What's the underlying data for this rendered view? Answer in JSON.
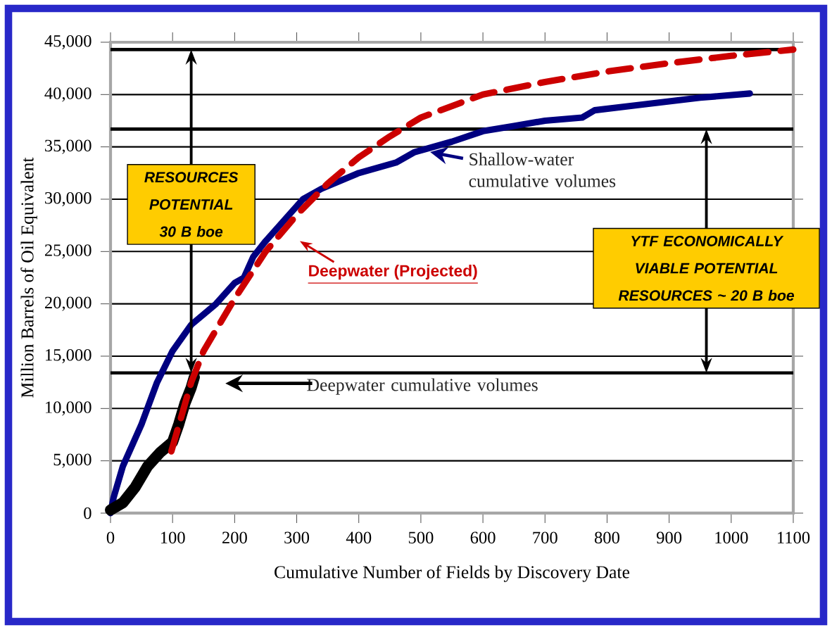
{
  "chart_data": {
    "type": "line",
    "xlabel": "Cumulative Number of Fields by Discovery Date",
    "ylabel": "Million Barrels of Oil Equivalent",
    "xlim": [
      0,
      1100
    ],
    "xticks": [
      0,
      100,
      200,
      300,
      400,
      500,
      600,
      700,
      800,
      900,
      1000,
      1100
    ],
    "ylim": [
      0,
      45000
    ],
    "yticks": [
      0,
      {
        "value": 5000,
        "label": "5,000"
      },
      {
        "value": 10000,
        "label": "10,000"
      },
      {
        "value": 15000,
        "label": "15,000"
      },
      {
        "value": 20000,
        "label": "20,000"
      },
      {
        "value": 25000,
        "label": "25,000"
      },
      {
        "value": 30000,
        "label": "30,000"
      },
      {
        "value": 35000,
        "label": "35,000"
      },
      {
        "value": 40000,
        "label": "40,000"
      },
      {
        "value": 45000,
        "label": "45,000"
      }
    ],
    "grid": "y",
    "marker": "none",
    "legend": "center",
    "series": [
      {
        "name": "Shallow-water cumulative volumes",
        "color": "#000080",
        "line_style": "solid",
        "x": [
          0,
          5,
          20,
          50,
          75,
          100,
          130,
          170,
          200,
          215,
          230,
          250,
          280,
          310,
          340,
          400,
          460,
          490,
          550,
          600,
          650,
          700,
          760,
          780,
          850,
          950,
          1030
        ],
        "values": [
          0,
          1500,
          4500,
          8500,
          12500,
          15500,
          18000,
          20000,
          22000,
          22500,
          24500,
          26000,
          28000,
          30000,
          31000,
          32500,
          33500,
          34500,
          35500,
          36500,
          37000,
          37500,
          37800,
          38500,
          39000,
          39700,
          40100
        ]
      },
      {
        "name": "Deepwater cumulative volumes",
        "color": "#000000",
        "line_style": "solid",
        "x": [
          0,
          20,
          40,
          60,
          80,
          100,
          110,
          120,
          130,
          135
        ],
        "values": [
          300,
          1000,
          2500,
          4500,
          5800,
          6800,
          8500,
          10500,
          12000,
          13000
        ]
      },
      {
        "name": "Deepwater (Projected)",
        "color": "#cc0000",
        "line_style": "dashed",
        "x": [
          98,
          130,
          150,
          200,
          250,
          300,
          350,
          400,
          450,
          500,
          600,
          700,
          800,
          900,
          1000,
          1100
        ],
        "values": [
          5900,
          12500,
          15500,
          20500,
          25000,
          28500,
          31500,
          34000,
          36000,
          37800,
          40000,
          41200,
          42200,
          43000,
          43700,
          44300
        ]
      }
    ],
    "ref_lines": [
      {
        "axis": "y",
        "value": 44300
      },
      {
        "axis": "y",
        "value": 13400
      },
      {
        "axis": "y",
        "value": 36700
      }
    ],
    "annotations": [
      "RESOURCES POTENTIAL 30 B boe",
      "YTF ECONOMICALLY VIABLE POTENTIAL RESOURCES ~ 20 B boe"
    ]
  }
}
